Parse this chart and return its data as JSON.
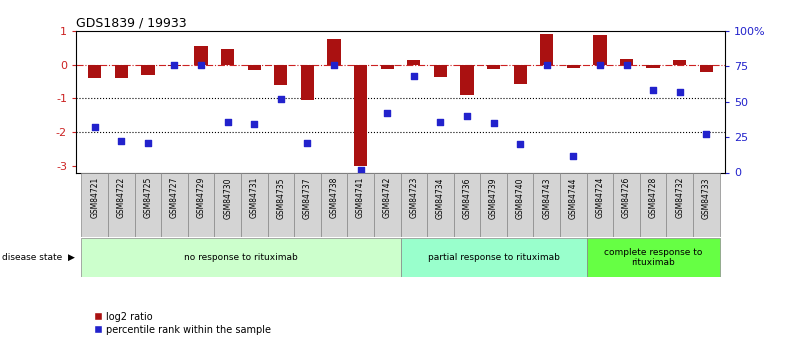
{
  "title": "GDS1839 / 19933",
  "samples": [
    "GSM84721",
    "GSM84722",
    "GSM84725",
    "GSM84727",
    "GSM84729",
    "GSM84730",
    "GSM84731",
    "GSM84735",
    "GSM84737",
    "GSM84738",
    "GSM84741",
    "GSM84742",
    "GSM84723",
    "GSM84734",
    "GSM84736",
    "GSM84739",
    "GSM84740",
    "GSM84743",
    "GSM84744",
    "GSM84724",
    "GSM84726",
    "GSM84728",
    "GSM84732",
    "GSM84733"
  ],
  "log2_ratio": [
    -0.4,
    -0.38,
    -0.3,
    -0.03,
    0.57,
    0.47,
    -0.15,
    -0.6,
    -1.05,
    0.77,
    -3.0,
    -0.12,
    0.15,
    -0.35,
    -0.9,
    -0.14,
    -0.58,
    0.9,
    -0.1,
    0.87,
    0.17,
    -0.1,
    0.15,
    -0.22
  ],
  "percentile": [
    32,
    22,
    21,
    76,
    76,
    36,
    34,
    52,
    21,
    76,
    2,
    42,
    68,
    36,
    40,
    35,
    20,
    76,
    12,
    76,
    76,
    58,
    57,
    27
  ],
  "groups": [
    {
      "label": "no response to rituximab",
      "start": 0,
      "end": 11,
      "color": "#ccffcc"
    },
    {
      "label": "partial response to rituximab",
      "start": 12,
      "end": 18,
      "color": "#99ffcc"
    },
    {
      "label": "complete response to\nrituximab",
      "start": 19,
      "end": 23,
      "color": "#66ff44"
    }
  ],
  "ylim_left": [
    -3.2,
    1.0
  ],
  "ylim_right": [
    0,
    100
  ],
  "bar_color": "#aa1111",
  "dot_color": "#2222cc",
  "hline_color": "#cc2222",
  "hline_y": 0,
  "dotted_lines": [
    -1.0,
    -2.0
  ],
  "right_ticks": [
    0,
    25,
    50,
    75,
    100
  ],
  "right_tick_labels": [
    "0",
    "25",
    "50",
    "75",
    "100%"
  ],
  "disease_state_label": "disease state",
  "legend_bar_label": "log2 ratio",
  "legend_dot_label": "percentile rank within the sample",
  "bar_width": 0.5
}
